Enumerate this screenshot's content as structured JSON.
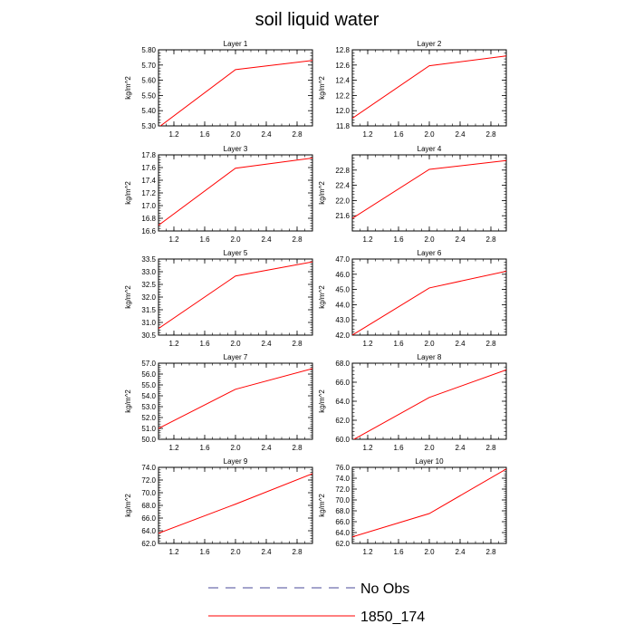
{
  "title": "soil liquid water",
  "colors": {
    "series": "#ff0000",
    "no_obs": "#4a4a9a",
    "axis": "#000000"
  },
  "legend": {
    "placement": "bottom-center",
    "entries": [
      {
        "label": "No Obs",
        "style": "dashed",
        "color": "#4a4a9a"
      },
      {
        "label": "1850_174",
        "style": "solid",
        "color": "#ff0000"
      }
    ]
  },
  "chart_data": [
    {
      "type": "line",
      "title": "Layer 1",
      "ylabel": "kg/m^2",
      "xlim": [
        1.0,
        3.0
      ],
      "xticks": [
        "1.2",
        "1.6",
        "2.0",
        "2.4",
        "2.8"
      ],
      "ylim": [
        5.3,
        5.8
      ],
      "yticks": [
        "5.30",
        "5.40",
        "5.50",
        "5.60",
        "5.70",
        "5.80"
      ],
      "series": [
        {
          "name": "1850_174",
          "x": [
            1,
            2,
            3
          ],
          "y": [
            5.29,
            5.67,
            5.73
          ]
        }
      ]
    },
    {
      "type": "line",
      "title": "Layer 2",
      "ylabel": "kg/m^2",
      "xlim": [
        1.0,
        3.0
      ],
      "xticks": [
        "1.2",
        "1.6",
        "2.0",
        "2.4",
        "2.8"
      ],
      "ylim": [
        11.8,
        12.8
      ],
      "yticks": [
        "11.8",
        "12.0",
        "12.2",
        "12.4",
        "12.6",
        "12.8"
      ],
      "series": [
        {
          "name": "1850_174",
          "x": [
            1,
            2,
            3
          ],
          "y": [
            11.9,
            12.59,
            12.72
          ]
        }
      ]
    },
    {
      "type": "line",
      "title": "Layer 3",
      "ylabel": "kg/m^2",
      "xlim": [
        1.0,
        3.0
      ],
      "xticks": [
        "1.2",
        "1.6",
        "2.0",
        "2.4",
        "2.8"
      ],
      "ylim": [
        16.6,
        17.8
      ],
      "yticks": [
        "16.6",
        "16.8",
        "17.0",
        "17.2",
        "17.4",
        "17.6",
        "17.8"
      ],
      "series": [
        {
          "name": "1850_174",
          "x": [
            1,
            2,
            3
          ],
          "y": [
            16.69,
            17.59,
            17.75
          ]
        }
      ]
    },
    {
      "type": "line",
      "title": "Layer 4",
      "ylabel": "kg/m^2",
      "xlim": [
        1.0,
        3.0
      ],
      "xticks": [
        "1.2",
        "1.6",
        "2.0",
        "2.4",
        "2.8"
      ],
      "ylim": [
        21.2,
        23.2
      ],
      "yticks": [
        "21.6",
        "22.0",
        "22.4",
        "22.8"
      ],
      "series": [
        {
          "name": "1850_174",
          "x": [
            1,
            2,
            3
          ],
          "y": [
            21.53,
            22.82,
            23.05
          ]
        }
      ]
    },
    {
      "type": "line",
      "title": "Layer 5",
      "ylabel": "kg/m^2",
      "xlim": [
        1.0,
        3.0
      ],
      "xticks": [
        "1.2",
        "1.6",
        "2.0",
        "2.4",
        "2.8"
      ],
      "ylim": [
        30.5,
        33.5
      ],
      "yticks": [
        "30.5",
        "31.0",
        "31.5",
        "32.0",
        "32.5",
        "33.0",
        "33.5"
      ],
      "series": [
        {
          "name": "1850_174",
          "x": [
            1,
            2,
            3
          ],
          "y": [
            30.76,
            32.83,
            33.39
          ]
        }
      ]
    },
    {
      "type": "line",
      "title": "Layer 6",
      "ylabel": "kg/m^2",
      "xlim": [
        1.0,
        3.0
      ],
      "xticks": [
        "1.2",
        "1.6",
        "2.0",
        "2.4",
        "2.8"
      ],
      "ylim": [
        42.0,
        47.0
      ],
      "yticks": [
        "42.0",
        "43.0",
        "44.0",
        "45.0",
        "46.0",
        "47.0"
      ],
      "series": [
        {
          "name": "1850_174",
          "x": [
            1,
            2,
            3
          ],
          "y": [
            42.0,
            45.1,
            46.2
          ]
        }
      ]
    },
    {
      "type": "line",
      "title": "Layer 7",
      "ylabel": "kg/m^2",
      "xlim": [
        1.0,
        3.0
      ],
      "xticks": [
        "1.2",
        "1.6",
        "2.0",
        "2.4",
        "2.8"
      ],
      "ylim": [
        50.0,
        57.0
      ],
      "yticks": [
        "50.0",
        "51.0",
        "52.0",
        "53.0",
        "54.0",
        "55.0",
        "56.0",
        "57.0"
      ],
      "series": [
        {
          "name": "1850_174",
          "x": [
            1,
            2,
            3
          ],
          "y": [
            51.0,
            54.6,
            56.5
          ]
        }
      ]
    },
    {
      "type": "line",
      "title": "Layer 8",
      "ylabel": "kg/m^2",
      "xlim": [
        1.0,
        3.0
      ],
      "xticks": [
        "1.2",
        "1.6",
        "2.0",
        "2.4",
        "2.8"
      ],
      "ylim": [
        60.0,
        68.0
      ],
      "yticks": [
        "60.0",
        "62.0",
        "64.0",
        "66.0",
        "68.0"
      ],
      "series": [
        {
          "name": "1850_174",
          "x": [
            1,
            2,
            3
          ],
          "y": [
            59.9,
            64.4,
            67.3
          ]
        }
      ]
    },
    {
      "type": "line",
      "title": "Layer 9",
      "ylabel": "kg/m^2",
      "xlim": [
        1.0,
        3.0
      ],
      "xticks": [
        "1.2",
        "1.6",
        "2.0",
        "2.4",
        "2.8"
      ],
      "ylim": [
        62.0,
        74.0
      ],
      "yticks": [
        "62.0",
        "64.0",
        "66.0",
        "68.0",
        "70.0",
        "72.0",
        "74.0"
      ],
      "series": [
        {
          "name": "1850_174",
          "x": [
            1,
            2,
            3
          ],
          "y": [
            63.6,
            68.2,
            73.0
          ]
        }
      ]
    },
    {
      "type": "line",
      "title": "Layer 10",
      "ylabel": "kg/m^2",
      "xlim": [
        1.0,
        3.0
      ],
      "xticks": [
        "1.2",
        "1.6",
        "2.0",
        "2.4",
        "2.8"
      ],
      "ylim": [
        62.0,
        76.0
      ],
      "yticks": [
        "62.0",
        "64.0",
        "66.0",
        "68.0",
        "70.0",
        "72.0",
        "74.0",
        "76.0"
      ],
      "series": [
        {
          "name": "1850_174",
          "x": [
            1,
            2,
            3
          ],
          "y": [
            63.2,
            67.5,
            75.7
          ]
        }
      ]
    }
  ]
}
